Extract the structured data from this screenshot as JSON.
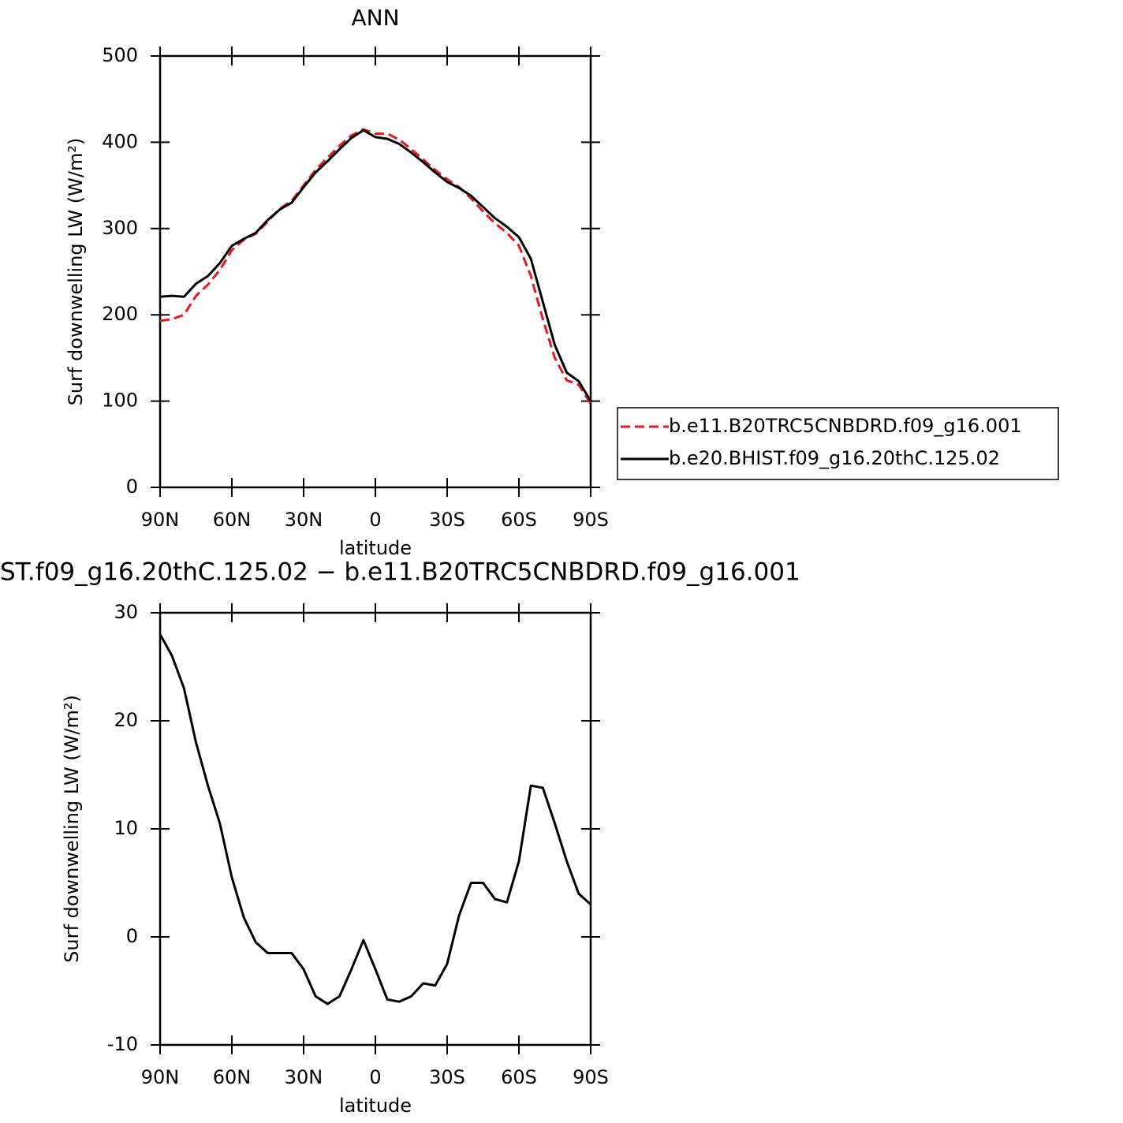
{
  "chart_data": [
    {
      "type": "line",
      "title": "ANN",
      "xlabel": "latitude",
      "ylabel": "Surf downwelling LW (W/m²)",
      "x": [
        90,
        85,
        80,
        75,
        70,
        65,
        60,
        55,
        50,
        45,
        40,
        35,
        30,
        25,
        20,
        15,
        10,
        5,
        0,
        -5,
        -10,
        -15,
        -20,
        -25,
        -30,
        -35,
        -40,
        -45,
        -50,
        -55,
        -60,
        -65,
        -70,
        -75,
        -80,
        -85,
        -90
      ],
      "series": [
        {
          "name": "b.e11.B20TRC5CNBDRD.f09_g16.001",
          "color": "#e8191c",
          "dashed": true,
          "values": [
            193,
            195,
            200,
            222,
            235,
            252,
            275,
            287,
            294,
            308,
            323,
            332,
            350,
            368,
            382,
            396,
            408,
            415,
            410,
            410,
            403,
            392,
            380,
            368,
            357,
            348,
            335,
            320,
            306,
            295,
            280,
            245,
            195,
            150,
            124,
            119,
            97
          ]
        },
        {
          "name": "b.e20.BHIST.f09_g16.20thC.125.02",
          "color": "#000000",
          "dashed": false,
          "values": [
            221,
            222,
            221,
            236,
            245,
            260,
            280,
            288,
            295,
            310,
            322,
            330,
            348,
            365,
            378,
            392,
            405,
            414,
            406,
            404,
            398,
            388,
            377,
            365,
            354,
            347,
            338,
            325,
            312,
            302,
            290,
            265,
            215,
            165,
            133,
            123,
            100
          ]
        }
      ],
      "xlim": [
        90,
        -90
      ],
      "xticks": [
        {
          "value": 90,
          "label": "90N"
        },
        {
          "value": 60,
          "label": "60N"
        },
        {
          "value": 30,
          "label": "30N"
        },
        0,
        {
          "value": -30,
          "label": "30S"
        },
        {
          "value": -60,
          "label": "60S"
        },
        {
          "value": -90,
          "label": "90S"
        }
      ],
      "ylim": [
        0,
        500
      ],
      "yticks": [
        0,
        100,
        200,
        300,
        400,
        500
      ],
      "legend": "right"
    },
    {
      "type": "line",
      "title": "ST.f09_g16.20thC.125.02 − b.e11.B20TRC5CNBDRD.f09_g16.001",
      "xlabel": "latitude",
      "ylabel": "Surf downwelling LW (W/m²)",
      "x": [
        90,
        85,
        80,
        75,
        70,
        65,
        60,
        55,
        50,
        45,
        40,
        35,
        30,
        25,
        20,
        15,
        10,
        5,
        0,
        -5,
        -10,
        -15,
        -20,
        -25,
        -30,
        -35,
        -40,
        -45,
        -50,
        -55,
        -60,
        -65,
        -70,
        -75,
        -80,
        -85,
        -90
      ],
      "series": [
        {
          "color": "#000000",
          "dashed": false,
          "values": [
            28,
            26,
            23,
            18,
            14,
            10.5,
            5.5,
            1.8,
            -0.5,
            -1.5,
            -1.5,
            -1.5,
            -3,
            -5.5,
            -6.2,
            -5.5,
            -3,
            -0.3,
            -3,
            -5.8,
            -6,
            -5.5,
            -4.3,
            -4.5,
            -2.5,
            2,
            5,
            5,
            3.5,
            3.2,
            7,
            14,
            13.8,
            10.5,
            7,
            4,
            3
          ]
        }
      ],
      "xlim": [
        90,
        -90
      ],
      "xticks": [
        {
          "value": 90,
          "label": "90N"
        },
        {
          "value": 60,
          "label": "60N"
        },
        {
          "value": 30,
          "label": "30N"
        },
        0,
        {
          "value": -30,
          "label": "30S"
        },
        {
          "value": -60,
          "label": "60S"
        },
        {
          "value": -90,
          "label": "90S"
        }
      ],
      "ylim": [
        -10,
        30
      ],
      "yticks": [
        -10,
        0,
        10,
        20,
        30
      ]
    }
  ]
}
